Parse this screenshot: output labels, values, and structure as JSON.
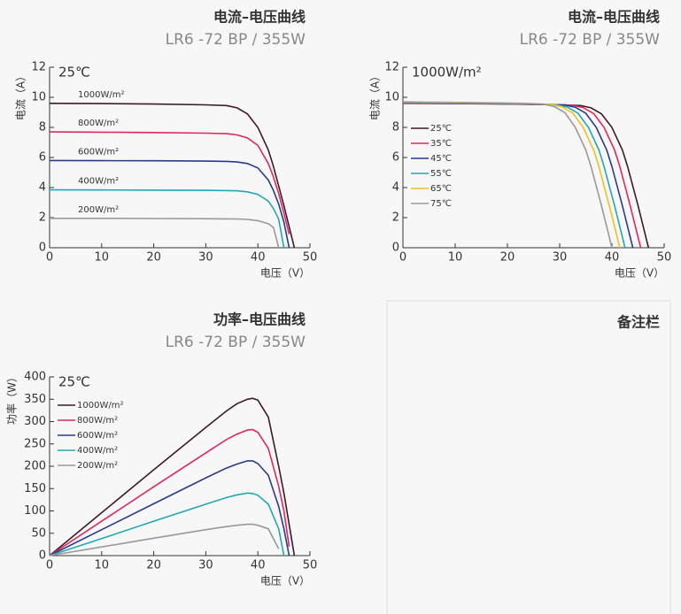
{
  "chart_data": [
    {
      "type": "line",
      "title": "电流–电压曲线",
      "subtitle": "LR6 -72 BP / 355W",
      "annotation": "25℃",
      "y_label": "电流（A）",
      "x_label": "电压（V）",
      "legend": "on-line",
      "x": [
        0,
        10,
        20,
        30,
        34,
        36,
        38,
        40,
        42,
        43,
        44,
        45,
        46,
        47
      ],
      "series": [
        {
          "name": "1000W/m²",
          "color": "#3d1a2a",
          "values": [
            9.6,
            9.58,
            9.55,
            9.5,
            9.45,
            9.3,
            8.9,
            8.0,
            6.5,
            5.4,
            4.1,
            2.8,
            1.4,
            0
          ]
        },
        {
          "name": "800W/m²",
          "color": "#e0285a",
          "values": [
            7.7,
            7.68,
            7.66,
            7.62,
            7.58,
            7.5,
            7.3,
            6.8,
            5.6,
            4.7,
            3.6,
            2.3,
            0.9,
            null
          ]
        },
        {
          "name": "600W/m²",
          "color": "#2a3a8c",
          "values": [
            5.8,
            5.79,
            5.78,
            5.76,
            5.74,
            5.7,
            5.6,
            5.3,
            4.5,
            3.8,
            2.9,
            1.7,
            0,
            null
          ]
        },
        {
          "name": "400W/m²",
          "color": "#20a8b0",
          "values": [
            3.85,
            3.84,
            3.83,
            3.82,
            3.8,
            3.78,
            3.72,
            3.55,
            3.1,
            2.6,
            1.9,
            0,
            null,
            null
          ]
        },
        {
          "name": "200W/m²",
          "color": "#999999",
          "values": [
            1.95,
            1.95,
            1.94,
            1.93,
            1.92,
            1.91,
            1.88,
            1.8,
            1.6,
            1.35,
            0,
            null,
            null,
            null
          ]
        }
      ],
      "xlim": [
        0,
        50
      ],
      "xticks": [
        0,
        10,
        20,
        30,
        40,
        50
      ],
      "ylim": [
        0,
        12
      ],
      "yticks": [
        0,
        2,
        4,
        6,
        8,
        10,
        12
      ]
    },
    {
      "type": "line",
      "title": "电流–电压曲线",
      "subtitle": "LR6 -72 BP / 355W",
      "annotation": "1000W/m²",
      "y_label": "电流（A）",
      "x_label": "电压（V）",
      "legend": "upper left",
      "series": [
        {
          "name": "25℃",
          "color": "#3d1a2a",
          "x": [
            0,
            10,
            20,
            30,
            34,
            36,
            38,
            40,
            42,
            43,
            44,
            45,
            46,
            47
          ],
          "values": [
            9.6,
            9.58,
            9.55,
            9.5,
            9.45,
            9.3,
            8.9,
            8.0,
            6.5,
            5.4,
            4.1,
            2.8,
            1.4,
            0
          ]
        },
        {
          "name": "35℃",
          "color": "#e0285a",
          "x": [
            0,
            8.5,
            18.5,
            28.5,
            32.5,
            34.5,
            36.5,
            38.5,
            40.5,
            41.5,
            42.5,
            43.5,
            44.5,
            45.5
          ],
          "values": [
            9.62,
            9.6,
            9.57,
            9.52,
            9.47,
            9.32,
            8.92,
            8.0,
            6.5,
            5.4,
            4.1,
            2.8,
            1.4,
            0
          ]
        },
        {
          "name": "45℃",
          "color": "#2a3a8c",
          "x": [
            0,
            7,
            17,
            27,
            31,
            33,
            35,
            37,
            39,
            40,
            41,
            42,
            43,
            44
          ],
          "values": [
            9.64,
            9.62,
            9.59,
            9.54,
            9.49,
            9.34,
            8.94,
            8.0,
            6.5,
            5.4,
            4.1,
            2.8,
            1.4,
            0
          ]
        },
        {
          "name": "55℃",
          "color": "#20a8b0",
          "x": [
            0,
            5.5,
            15.5,
            25.5,
            29.5,
            31.5,
            33.5,
            35.5,
            37.5,
            38.5,
            39.5,
            40.5,
            41.5,
            42.5
          ],
          "values": [
            9.66,
            9.64,
            9.61,
            9.56,
            9.5,
            9.35,
            8.95,
            8.0,
            6.5,
            5.4,
            4.1,
            2.8,
            1.4,
            0
          ]
        },
        {
          "name": "65℃",
          "color": "#f0c020",
          "x": [
            0,
            4.5,
            14.5,
            24.5,
            28.5,
            30.5,
            32.5,
            34.5,
            36.5,
            37.5,
            38.5,
            39.5,
            40.5,
            41.5
          ],
          "values": [
            9.68,
            9.66,
            9.63,
            9.58,
            9.52,
            9.36,
            8.96,
            8.0,
            6.5,
            5.4,
            4.1,
            2.8,
            1.4,
            0
          ]
        },
        {
          "name": "75℃",
          "color": "#999999",
          "x": [
            0,
            3,
            13,
            23,
            27,
            29,
            31,
            33,
            35,
            36,
            37,
            38,
            39,
            40
          ],
          "values": [
            9.7,
            9.68,
            9.65,
            9.6,
            9.54,
            9.38,
            8.98,
            8.0,
            6.5,
            5.4,
            4.1,
            2.8,
            1.4,
            0
          ]
        }
      ],
      "xlim": [
        0,
        50
      ],
      "xticks": [
        0,
        10,
        20,
        30,
        40,
        50
      ],
      "ylim": [
        0,
        12
      ],
      "yticks": [
        0,
        2,
        4,
        6,
        8,
        10,
        12
      ]
    },
    {
      "type": "line",
      "title": "功率–电压曲线",
      "subtitle": "LR6 -72 BP / 355W",
      "annotation": "25℃",
      "y_label": "功率（W）",
      "x_label": "电压（V）",
      "legend": "upper left",
      "x": [
        0,
        10,
        20,
        30,
        34,
        36,
        38,
        39,
        40,
        42,
        44,
        45,
        46,
        47
      ],
      "series": [
        {
          "name": "1000W/m²",
          "color": "#3d1a2a",
          "values": [
            0,
            96,
            192,
            287,
            324,
            340,
            350,
            352,
            348,
            310,
            200,
            140,
            70,
            0
          ]
        },
        {
          "name": "800W/m²",
          "color": "#e0285a",
          "values": [
            0,
            77,
            154,
            230,
            260,
            272,
            281,
            282,
            276,
            240,
            155,
            100,
            20,
            null
          ]
        },
        {
          "name": "600W/m²",
          "color": "#2a3a8c",
          "values": [
            0,
            58,
            116,
            174,
            196,
            205,
            212,
            212,
            206,
            180,
            110,
            60,
            0,
            null
          ]
        },
        {
          "name": "400W/m²",
          "color": "#20a8b0",
          "values": [
            0,
            38,
            77,
            115,
            130,
            136,
            140,
            139,
            135,
            115,
            60,
            0,
            null,
            null
          ]
        },
        {
          "name": "200W/m²",
          "color": "#999999",
          "values": [
            0,
            19.5,
            39,
            58,
            65,
            68,
            70,
            70,
            68,
            60,
            15,
            null,
            null,
            null
          ]
        }
      ],
      "xlim": [
        0,
        50
      ],
      "xticks": [
        0,
        10,
        20,
        30,
        40,
        50
      ],
      "ylim": [
        0,
        400
      ],
      "yticks": [
        0,
        50,
        100,
        150,
        200,
        250,
        300,
        350,
        400
      ]
    }
  ],
  "notes": {
    "title": "备注栏"
  }
}
